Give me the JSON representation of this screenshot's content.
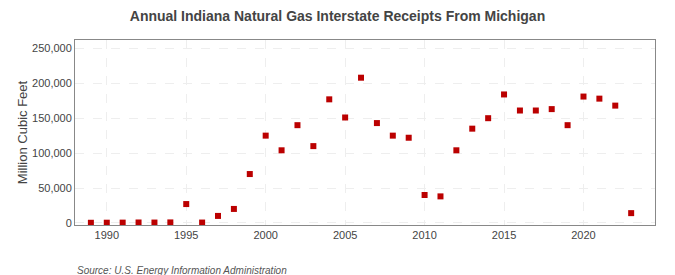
{
  "chart_data": {
    "type": "scatter",
    "title": "Annual Indiana Natural Gas Interstate Receipts From Michigan",
    "ylabel": "Million Cubic Feet",
    "source": "Source: U.S. Energy Information Administration",
    "x": [
      1989,
      1990,
      1991,
      1992,
      1993,
      1994,
      1995,
      1996,
      1997,
      1998,
      1999,
      2000,
      2001,
      2002,
      2003,
      2004,
      2005,
      2006,
      2007,
      2008,
      2009,
      2010,
      2011,
      2012,
      2013,
      2014,
      2015,
      2016,
      2017,
      2018,
      2019,
      2020,
      2021,
      2022,
      2023
    ],
    "values": [
      200,
      300,
      400,
      600,
      500,
      700,
      27000,
      500,
      10000,
      20000,
      70000,
      125000,
      104000,
      140000,
      110000,
      177000,
      151000,
      208000,
      143000,
      125000,
      122000,
      40000,
      38000,
      104000,
      135000,
      150000,
      184000,
      161000,
      161000,
      163000,
      140000,
      181000,
      178000,
      168000,
      14000
    ],
    "color": "#bb0000",
    "marker": "square",
    "xlim": [
      1988.0,
      2024.5
    ],
    "xticks": [
      1990,
      1995,
      2000,
      2005,
      2010,
      2015,
      2020
    ],
    "ylim": [
      -3000,
      262000
    ],
    "yticks": [
      0,
      {
        "value": 50000,
        "label": "50,000"
      },
      {
        "value": 100000,
        "label": "100,000"
      },
      {
        "value": 150000,
        "label": "150,000"
      },
      {
        "value": 200000,
        "label": "200,000"
      },
      {
        "value": 250000,
        "label": "250,000"
      }
    ],
    "grid": true
  }
}
